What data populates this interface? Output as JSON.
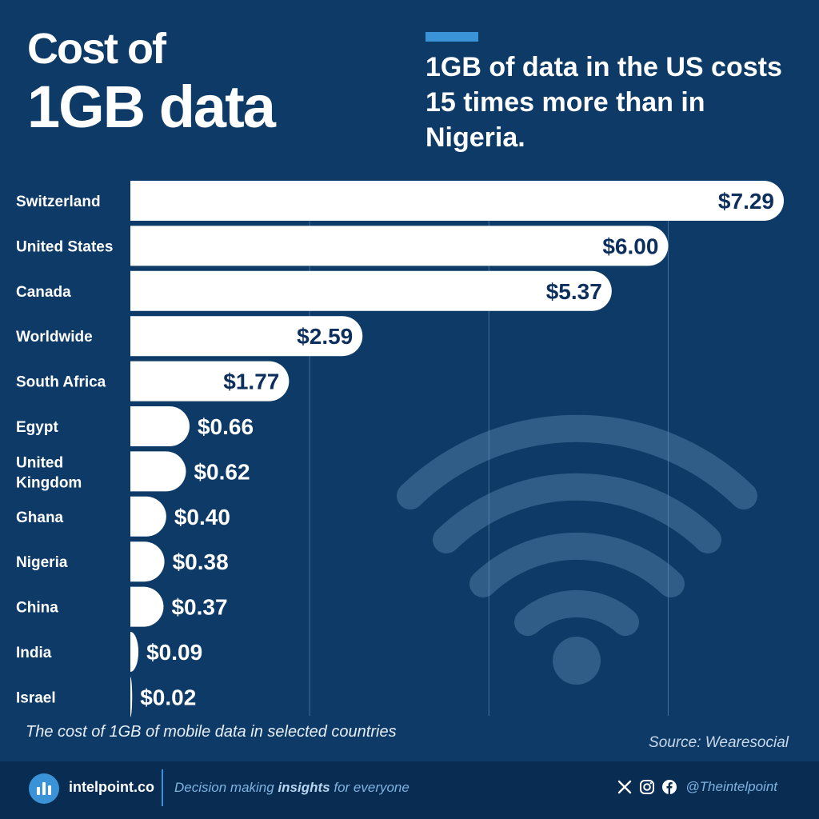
{
  "header": {
    "title_line1": "Cost of",
    "title_line2": "1GB data",
    "subtitle": "1GB of data in the US costs 15 times more than in Nigeria."
  },
  "chart_data": {
    "type": "bar",
    "orientation": "horizontal",
    "categories": [
      "Switzerland",
      "United States",
      "Canada",
      "Worldwide",
      "South Africa",
      "Egypt",
      "United Kingdom",
      "Ghana",
      "Nigeria",
      "China",
      "India",
      "Israel"
    ],
    "values": [
      7.29,
      6.0,
      5.37,
      2.59,
      1.77,
      0.66,
      0.62,
      0.4,
      0.38,
      0.37,
      0.09,
      0.02
    ],
    "value_labels": [
      "$7.29",
      "$6.00",
      "$5.37",
      "$2.59",
      "$1.77",
      "$0.66",
      "$0.62",
      "$0.40",
      "$0.38",
      "$0.37",
      "$0.09",
      "$0.02"
    ],
    "title": "Cost of 1GB data",
    "xlabel": "",
    "ylabel": "",
    "xlim": [
      0,
      7.29
    ],
    "gridlines_at": [
      2,
      4,
      6
    ],
    "unit": "USD"
  },
  "caption": "The cost of 1GB of mobile data in selected countries",
  "source": "Source: Wearesocial",
  "footer": {
    "brand": "intelpoint.co",
    "tagline_pre": "Decision making ",
    "tagline_bold": "insights",
    "tagline_post": " for everyone",
    "handle": "@Theintelpoint"
  },
  "icons": [
    "wifi-icon",
    "intelpoint-logo-icon",
    "x-icon",
    "instagram-icon",
    "facebook-icon"
  ],
  "colors": {
    "background": "#0d3a66",
    "bar": "#ffffff",
    "bar_value_inside": "#0d3a66",
    "accent": "#3a93d6",
    "footer": "#082c52"
  }
}
